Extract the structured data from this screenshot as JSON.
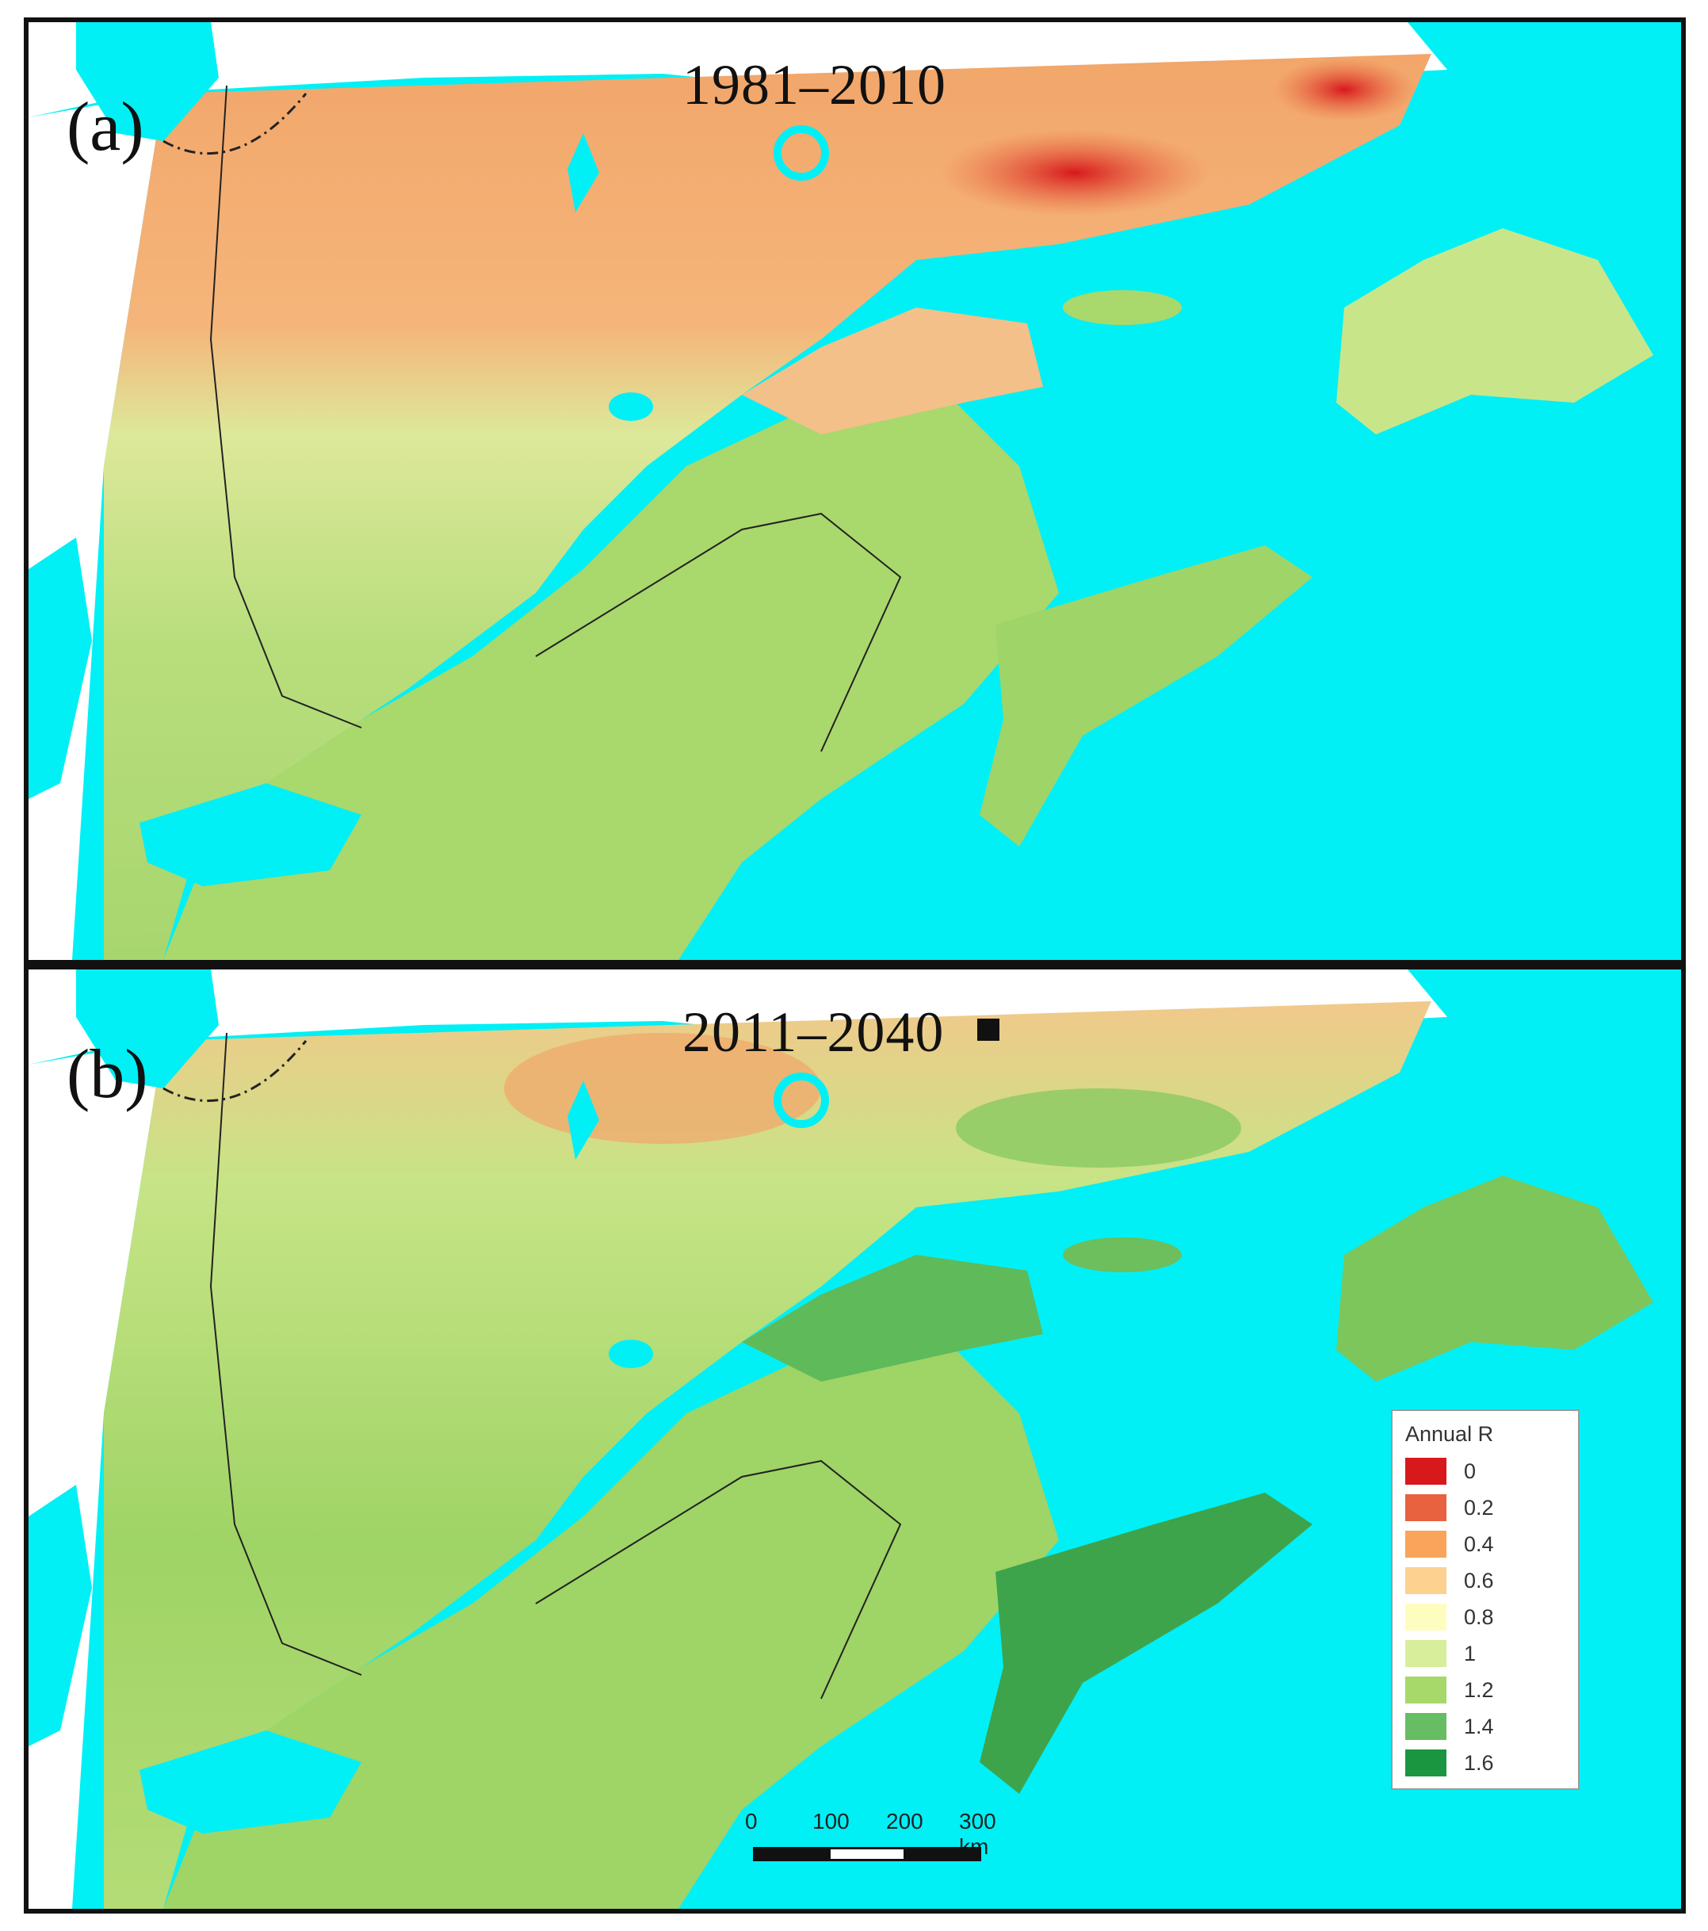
{
  "panels": [
    {
      "tag": "(a)",
      "period": "1981–2010"
    },
    {
      "tag": "(b)",
      "period": "2011–2040"
    }
  ],
  "legend": {
    "title": "Annual R",
    "items": [
      {
        "label": "0",
        "color": "#d7191c"
      },
      {
        "label": "0.2",
        "color": "#e8623f"
      },
      {
        "label": "0.4",
        "color": "#f9a45a"
      },
      {
        "label": "0.6",
        "color": "#fdd18f"
      },
      {
        "label": "0.8",
        "color": "#fefdc0"
      },
      {
        "label": "1",
        "color": "#d8ee9b"
      },
      {
        "label": "1.2",
        "color": "#a6d96a"
      },
      {
        "label": "1.4",
        "color": "#66bd63"
      },
      {
        "label": "1.6",
        "color": "#1a9641"
      }
    ]
  },
  "scale_bar": {
    "ticks": [
      "0",
      "100",
      "200",
      "300 km"
    ]
  },
  "colors": {
    "water": "#00f0f5",
    "outside": "#ffffff",
    "land_border": "#222222"
  }
}
